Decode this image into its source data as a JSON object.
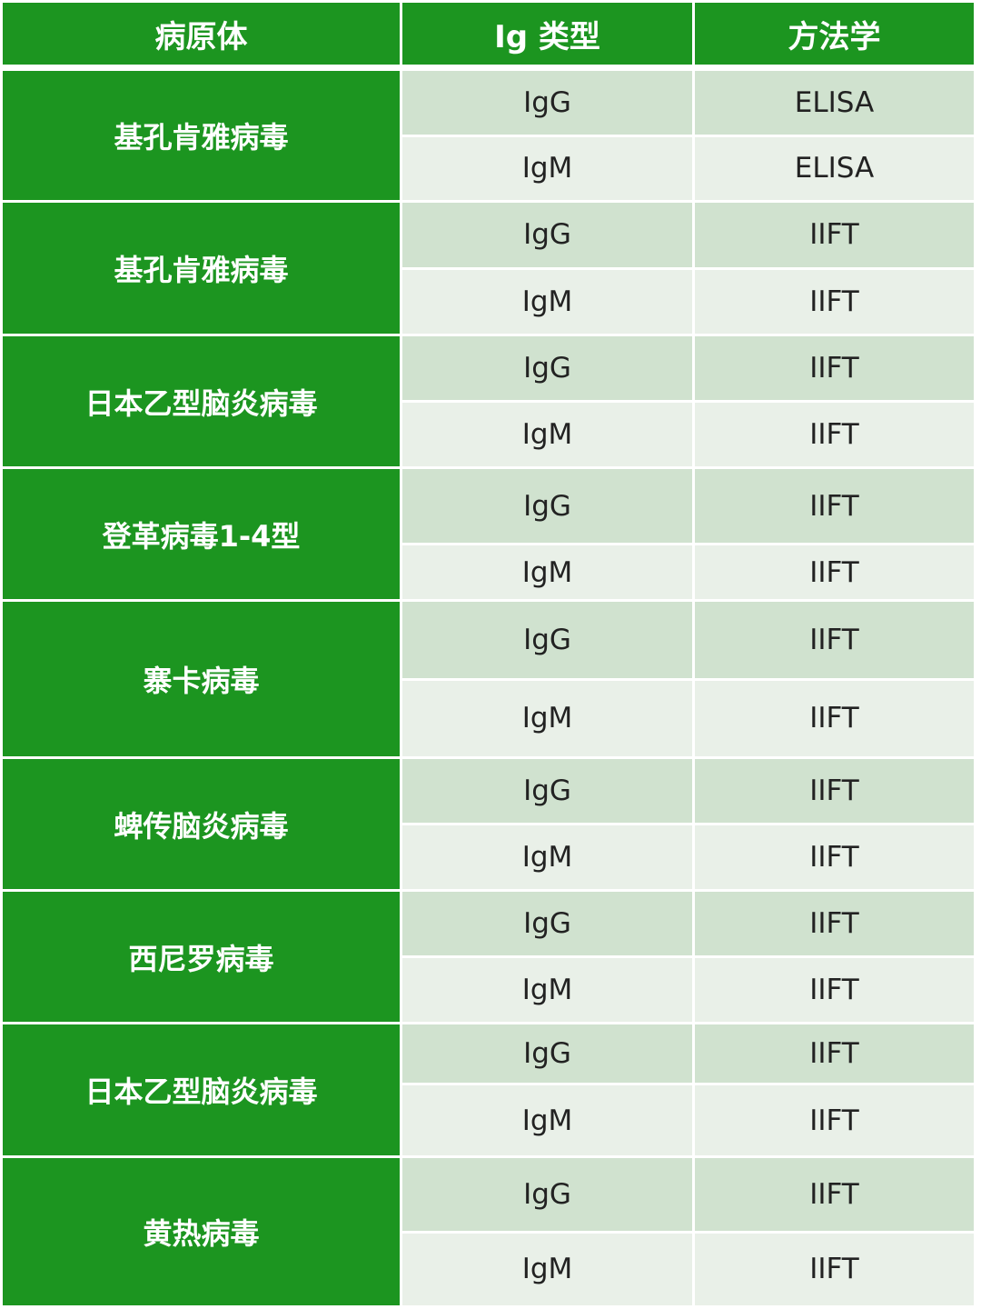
{
  "header": {
    "pathogen": "病原体",
    "ig_type": "Ig 类型",
    "method": "方法学"
  },
  "colors": {
    "header_green": "#1c9520",
    "igg_row": "#d0e2cf",
    "igm_row": "#e9f0e8"
  },
  "groups": [
    {
      "pathogen": "基孔肯雅病毒",
      "rows": [
        {
          "ig": "IgG",
          "method": "ELISA"
        },
        {
          "ig": "IgM",
          "method": "ELISA"
        }
      ]
    },
    {
      "pathogen": "基孔肯雅病毒",
      "rows": [
        {
          "ig": "IgG",
          "method": "IIFT"
        },
        {
          "ig": "IgM",
          "method": "IIFT"
        }
      ]
    },
    {
      "pathogen": "日本乙型脑炎病毒",
      "rows": [
        {
          "ig": "IgG",
          "method": "IIFT"
        },
        {
          "ig": "IgM",
          "method": "IIFT"
        }
      ]
    },
    {
      "pathogen": "登革病毒1-4型",
      "rows": [
        {
          "ig": "IgG",
          "method": "IIFT"
        },
        {
          "ig": "IgM",
          "method": "IIFT"
        }
      ]
    },
    {
      "pathogen": "寨卡病毒",
      "rows": [
        {
          "ig": "IgG",
          "method": "IIFT"
        },
        {
          "ig": "IgM",
          "method": "IIFT"
        }
      ]
    },
    {
      "pathogen": "蜱传脑炎病毒",
      "rows": [
        {
          "ig": "IgG",
          "method": "IIFT"
        },
        {
          "ig": "IgM",
          "method": "IIFT"
        }
      ]
    },
    {
      "pathogen": "西尼罗病毒",
      "rows": [
        {
          "ig": "IgG",
          "method": "IIFT"
        },
        {
          "ig": "IgM",
          "method": "IIFT"
        }
      ]
    },
    {
      "pathogen": "日本乙型脑炎病毒",
      "rows": [
        {
          "ig": "IgG",
          "method": "IIFT"
        },
        {
          "ig": "IgM",
          "method": "IIFT"
        }
      ]
    },
    {
      "pathogen": "黄热病毒",
      "rows": [
        {
          "ig": "IgG",
          "method": "IIFT"
        },
        {
          "ig": "IgM",
          "method": "IIFT"
        }
      ]
    }
  ]
}
